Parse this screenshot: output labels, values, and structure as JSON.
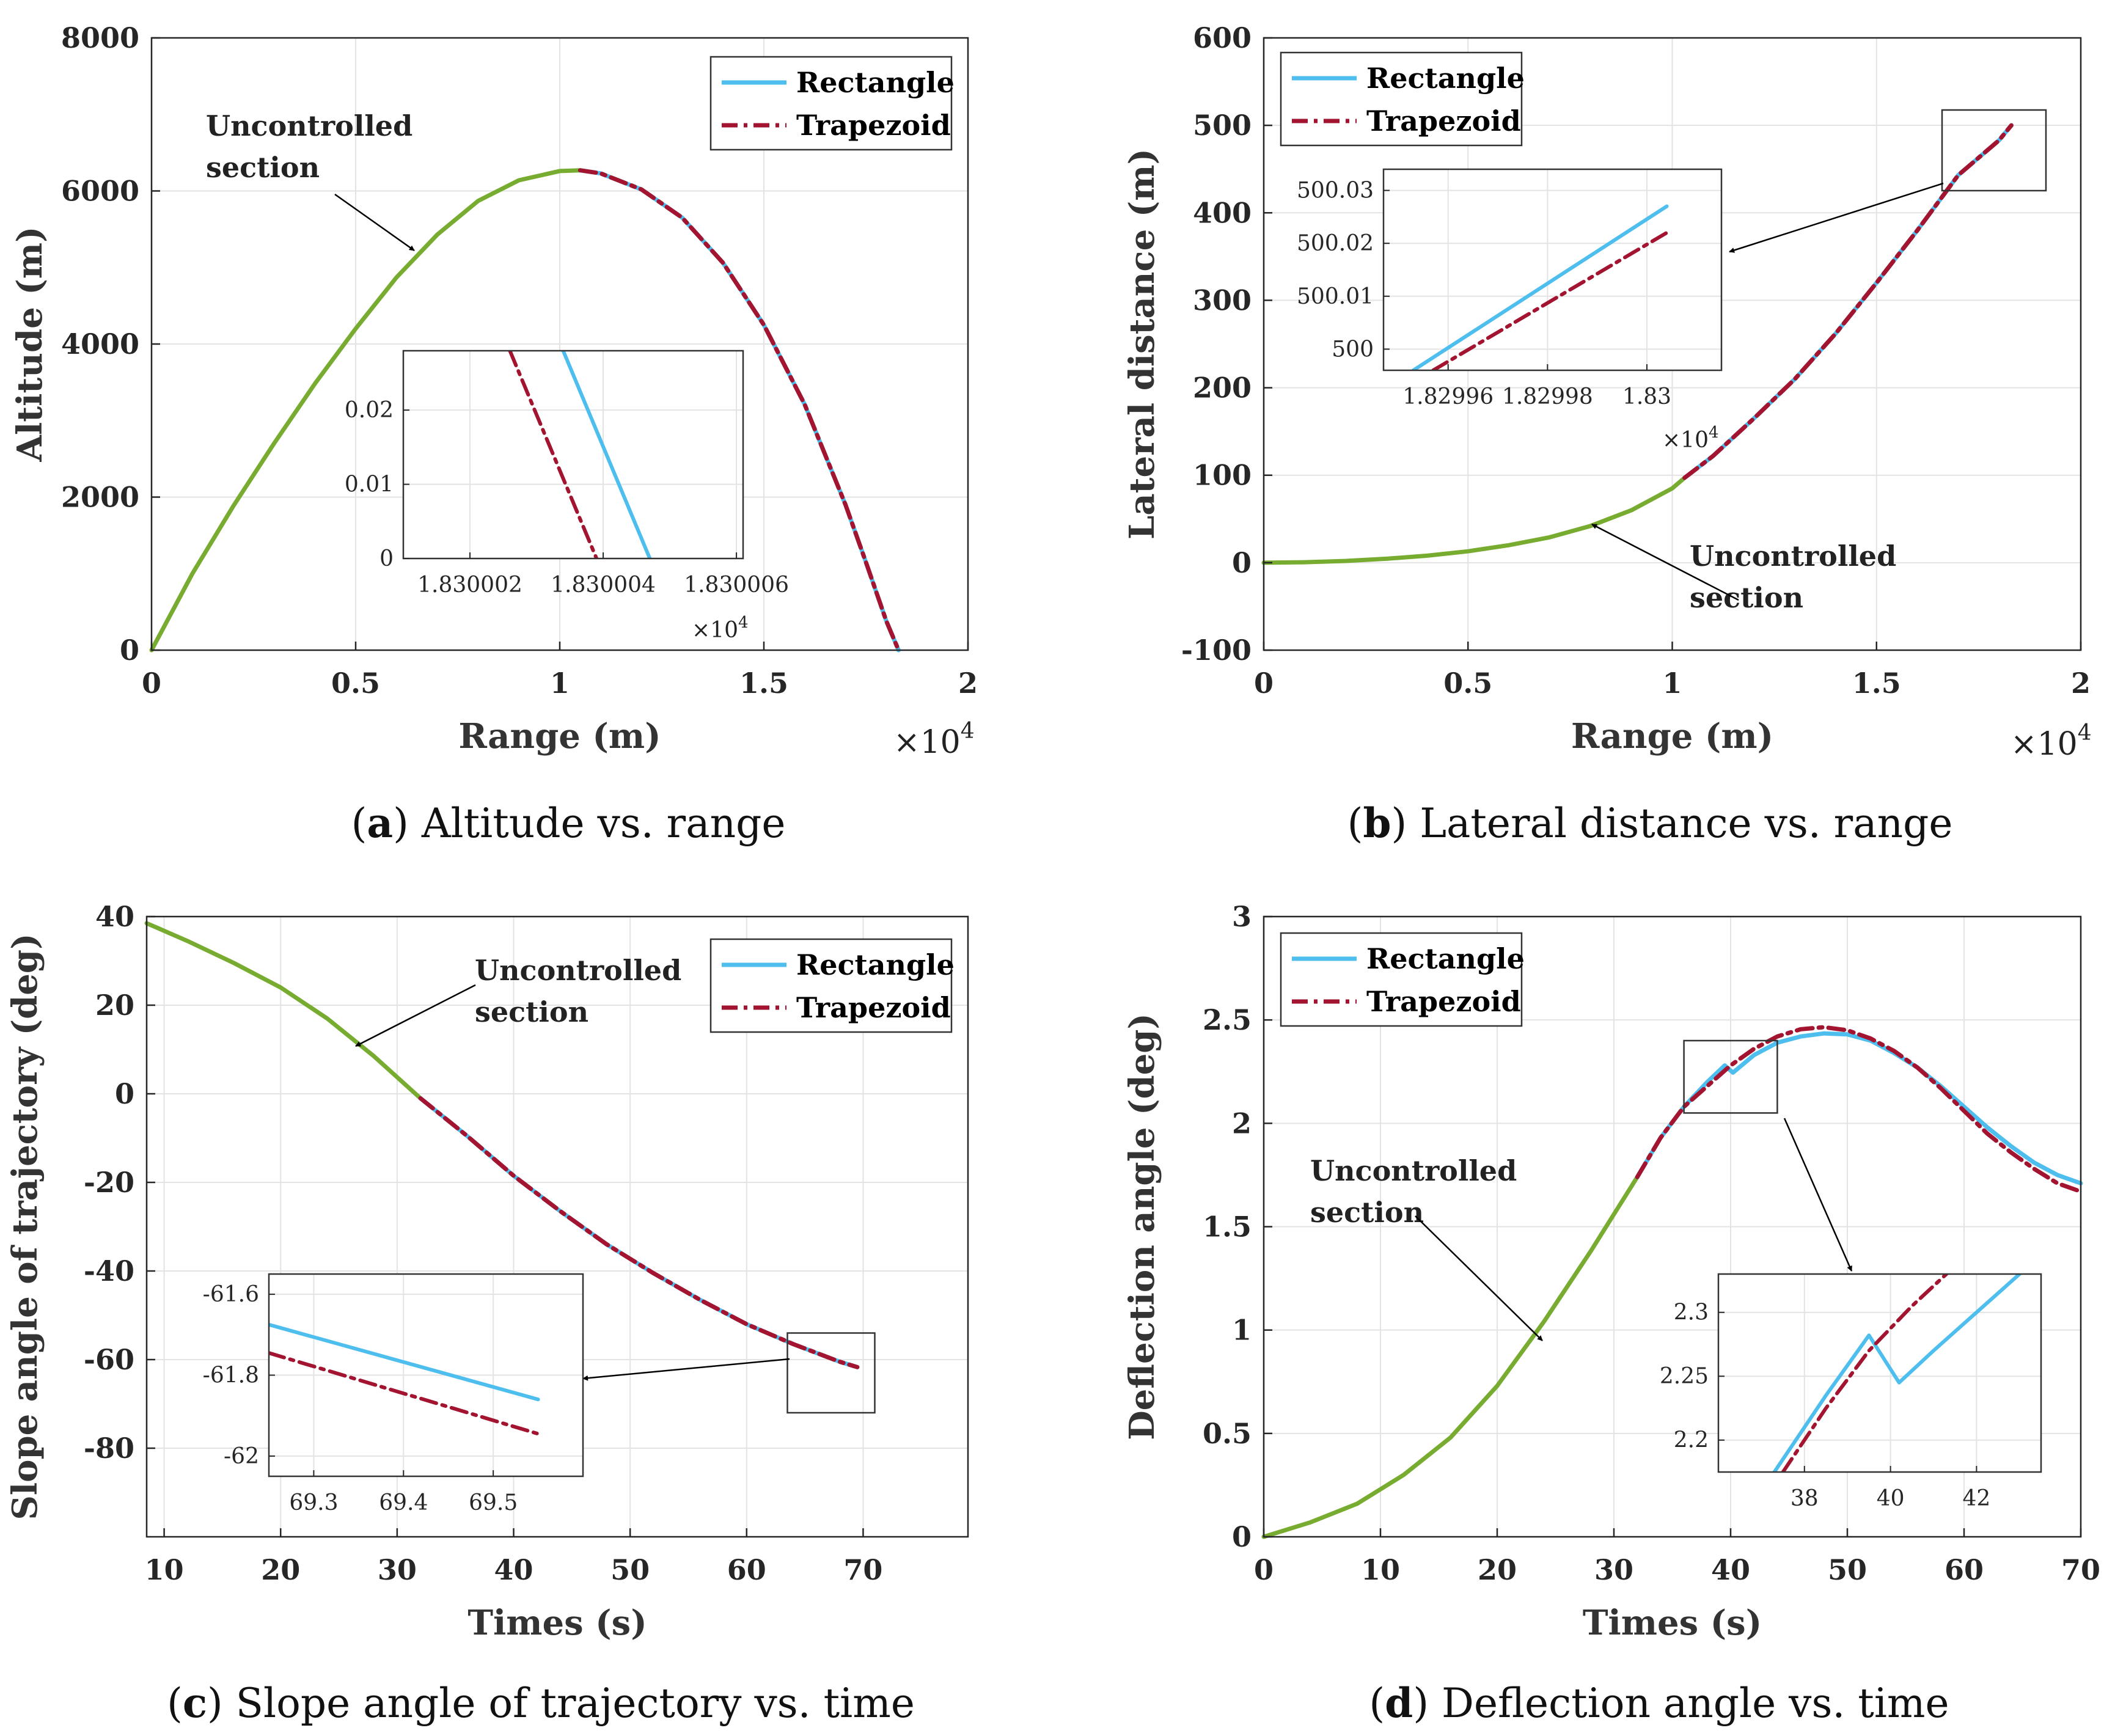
{
  "colors": {
    "uncontrolled": "#77AC30",
    "rectangle": "#4DBEEE",
    "trapezoid": "#A2142F",
    "grid": "#e3e3e3",
    "axis": "#262626"
  },
  "chart_data": [
    {
      "type": "line",
      "id": "a",
      "caption_letter": "a",
      "caption_text": " Altitude vs. range",
      "xlabel": "Range (m)",
      "ylabel": "Altitude (m)",
      "x_exponent": "×10",
      "x_exponent_power": "4",
      "xlim": [
        0,
        2
      ],
      "ylim": [
        0,
        8000
      ],
      "xticks": [
        0,
        0.5,
        1,
        1.5,
        2
      ],
      "xtick_labels": [
        "0",
        "0.5",
        "1",
        "1.5",
        "2"
      ],
      "yticks": [
        0,
        2000,
        4000,
        6000,
        8000
      ],
      "ytick_labels": [
        "0",
        "2000",
        "4000",
        "6000",
        "8000"
      ],
      "legend": {
        "position": "top-right",
        "entries": [
          "Rectangle",
          "Trapezoid"
        ]
      },
      "annotation": {
        "lines": [
          "Uncontrolled",
          "section"
        ]
      },
      "series": [
        {
          "name": "Uncontrolled section",
          "style": "uncontrolled",
          "x": [
            0,
            0.1,
            0.2,
            0.3,
            0.4,
            0.5,
            0.6,
            0.7,
            0.8,
            0.9,
            1.0,
            1.05
          ],
          "y": [
            0,
            1000,
            1880,
            2700,
            3480,
            4200,
            4870,
            5430,
            5870,
            6140,
            6260,
            6270
          ]
        },
        {
          "name": "Rectangle",
          "style": "rectangle",
          "x": [
            1.05,
            1.1,
            1.2,
            1.3,
            1.4,
            1.5,
            1.6,
            1.7,
            1.75,
            1.8,
            1.83
          ],
          "y": [
            6270,
            6230,
            6020,
            5650,
            5060,
            4250,
            3210,
            1900,
            1150,
            380,
            0
          ]
        },
        {
          "name": "Trapezoid",
          "style": "trapezoid",
          "x": [
            1.05,
            1.1,
            1.2,
            1.3,
            1.4,
            1.5,
            1.6,
            1.7,
            1.75,
            1.8,
            1.83
          ],
          "y": [
            6270,
            6230,
            6020,
            5650,
            5060,
            4250,
            3210,
            1900,
            1150,
            380,
            0
          ]
        }
      ],
      "inset": {
        "xlim": [
          1.830001,
          1.8300061
        ],
        "ylim": [
          0,
          0.028
        ],
        "xticks": [
          1.830002,
          1.830004,
          1.830006
        ],
        "xtick_labels": [
          "1.830002",
          "1.830004",
          "1.830006"
        ],
        "yticks": [
          0,
          0.01,
          0.02
        ],
        "ytick_labels": [
          "0",
          "0.01",
          "0.02"
        ],
        "x_exponent": "×10",
        "x_exponent_power": "4",
        "series": [
          {
            "name": "Rectangle",
            "style": "rectangle",
            "x": [
              1.8300034,
              1.8300047
            ],
            "y": [
              0.028,
              0
            ]
          },
          {
            "name": "Trapezoid",
            "style": "trapezoid",
            "x": [
              1.8300026,
              1.8300039
            ],
            "y": [
              0.028,
              0
            ]
          }
        ]
      }
    },
    {
      "type": "line",
      "id": "b",
      "caption_letter": "b",
      "caption_text": " Lateral distance vs. range",
      "xlabel": "Range (m)",
      "ylabel": "Lateral distance (m)",
      "x_exponent": "×10",
      "x_exponent_power": "4",
      "xlim": [
        0,
        2
      ],
      "ylim": [
        -100,
        600
      ],
      "xticks": [
        0,
        0.5,
        1,
        1.5,
        2
      ],
      "xtick_labels": [
        "0",
        "0.5",
        "1",
        "1.5",
        "2"
      ],
      "yticks": [
        -100,
        0,
        100,
        200,
        300,
        400,
        500,
        600
      ],
      "ytick_labels": [
        "-100",
        "0",
        "100",
        "200",
        "300",
        "400",
        "500",
        "600"
      ],
      "legend": {
        "position": "top-left",
        "entries": [
          "Rectangle",
          "Trapezoid"
        ]
      },
      "annotation": {
        "lines": [
          "Uncontrolled",
          "section"
        ]
      },
      "series": [
        {
          "name": "Uncontrolled section",
          "style": "uncontrolled",
          "x": [
            0,
            0.1,
            0.2,
            0.3,
            0.4,
            0.5,
            0.6,
            0.7,
            0.8,
            0.9,
            1.0,
            1.03
          ],
          "y": [
            0,
            0.5,
            2,
            4.5,
            8,
            13,
            20,
            29,
            42,
            60,
            85,
            97
          ]
        },
        {
          "name": "Rectangle",
          "style": "rectangle",
          "x": [
            1.03,
            1.1,
            1.2,
            1.3,
            1.4,
            1.5,
            1.6,
            1.7,
            1.8,
            1.83
          ],
          "y": [
            97,
            122,
            165,
            210,
            262,
            320,
            380,
            443,
            483,
            500
          ]
        },
        {
          "name": "Trapezoid",
          "style": "trapezoid",
          "x": [
            1.03,
            1.1,
            1.2,
            1.3,
            1.4,
            1.5,
            1.6,
            1.7,
            1.8,
            1.83
          ],
          "y": [
            97,
            122,
            165,
            210,
            262,
            320,
            380,
            443,
            483,
            500
          ]
        }
      ],
      "inset": {
        "xlim": [
          1.829947,
          1.830015
        ],
        "ylim": [
          499.996,
          500.034
        ],
        "xticks": [
          1.82996,
          1.82998,
          1.83
        ],
        "xtick_labels": [
          "1.82996",
          "1.82998",
          "1.83"
        ],
        "yticks": [
          500,
          500.01,
          500.02,
          500.03
        ],
        "ytick_labels": [
          "500",
          "500.01",
          "500.02",
          "500.03"
        ],
        "x_exponent": "×10",
        "x_exponent_power": "4",
        "series": [
          {
            "name": "Rectangle",
            "style": "rectangle",
            "x": [
              1.829953,
              1.830004
            ],
            "y": [
              499.996,
              500.027
            ]
          },
          {
            "name": "Trapezoid",
            "style": "trapezoid",
            "x": [
              1.829957,
              1.830004
            ],
            "y": [
              499.996,
              500.022
            ]
          }
        ]
      }
    },
    {
      "type": "line",
      "id": "c",
      "caption_letter": "c",
      "caption_text": " Slope angle of trajectory vs. time",
      "xlabel": "Times (s)",
      "ylabel": "Slope angle of trajectory (deg)",
      "xlim": [
        8.5,
        79
      ],
      "ylim": [
        -100,
        40
      ],
      "xticks": [
        10,
        20,
        30,
        40,
        50,
        60,
        70
      ],
      "xtick_labels": [
        "10",
        "20",
        "30",
        "40",
        "50",
        "60",
        "70"
      ],
      "yticks": [
        -80,
        -60,
        -40,
        -20,
        0,
        20,
        40
      ],
      "ytick_labels": [
        "-80",
        "-60",
        "-40",
        "-20",
        "0",
        "20",
        "40"
      ],
      "legend": {
        "position": "top-right",
        "entries": [
          "Rectangle",
          "Trapezoid"
        ]
      },
      "annotation": {
        "lines": [
          "Uncontrolled",
          "section"
        ]
      },
      "series": [
        {
          "name": "Uncontrolled section",
          "style": "uncontrolled",
          "x": [
            8.5,
            12,
            16,
            20,
            24,
            28,
            32
          ],
          "y": [
            38.5,
            34.5,
            29.5,
            24,
            17,
            8.5,
            -1
          ]
        },
        {
          "name": "Rectangle",
          "style": "rectangle",
          "x": [
            32,
            36,
            40,
            44,
            48,
            52,
            56,
            60,
            64,
            68,
            69.5
          ],
          "y": [
            -1,
            -9.5,
            -18.5,
            -26.5,
            -34,
            -40.5,
            -46.5,
            -52,
            -56.5,
            -60.5,
            -61.7
          ]
        },
        {
          "name": "Trapezoid",
          "style": "trapezoid",
          "x": [
            32,
            36,
            40,
            44,
            48,
            52,
            56,
            60,
            64,
            68,
            69.5
          ],
          "y": [
            -1,
            -9.5,
            -18.5,
            -26.5,
            -34,
            -40.5,
            -46.5,
            -52,
            -56.5,
            -60.5,
            -61.7
          ]
        }
      ],
      "zoom_box": {
        "x": [
          63.5,
          71
        ],
        "y": [
          -72,
          -54
        ]
      },
      "inset": {
        "xlim": [
          69.25,
          69.6
        ],
        "ylim": [
          -62.05,
          -61.55
        ],
        "xticks": [
          69.3,
          69.4,
          69.5
        ],
        "xtick_labels": [
          "69.3",
          "69.4",
          "69.5"
        ],
        "yticks": [
          -61.6,
          -61.8,
          -62
        ],
        "ytick_labels": [
          "-61.6",
          "-61.8",
          "-62"
        ],
        "series": [
          {
            "name": "Rectangle",
            "style": "rectangle",
            "x": [
              69.25,
              69.55
            ],
            "y": [
              -61.675,
              -61.86
            ]
          },
          {
            "name": "Trapezoid",
            "style": "trapezoid",
            "x": [
              69.25,
              69.55
            ],
            "y": [
              -61.745,
              -61.945
            ]
          }
        ]
      }
    },
    {
      "type": "line",
      "id": "d",
      "caption_letter": "d",
      "caption_text": " Deflection angle vs. time",
      "xlabel": "Times (s)",
      "ylabel": "Deflection angle (deg)",
      "xlim": [
        0,
        70
      ],
      "ylim": [
        0,
        3
      ],
      "xticks": [
        0,
        10,
        20,
        30,
        40,
        50,
        60,
        70
      ],
      "xtick_labels": [
        "0",
        "10",
        "20",
        "30",
        "40",
        "50",
        "60",
        "70"
      ],
      "yticks": [
        0,
        0.5,
        1,
        1.5,
        2,
        2.5,
        3
      ],
      "ytick_labels": [
        "0",
        "0.5",
        "1",
        "1.5",
        "2",
        "2.5",
        "3"
      ],
      "legend": {
        "position": "top-left",
        "entries": [
          "Rectangle",
          "Trapezoid"
        ]
      },
      "annotation": {
        "lines": [
          "Uncontrolled",
          "section"
        ]
      },
      "series": [
        {
          "name": "Uncontrolled section",
          "style": "uncontrolled",
          "x": [
            0,
            4,
            8,
            12,
            16,
            20,
            24,
            28,
            32
          ],
          "y": [
            0,
            0.07,
            0.16,
            0.3,
            0.48,
            0.73,
            1.04,
            1.38,
            1.74
          ]
        },
        {
          "name": "Rectangle",
          "style": "rectangle",
          "x": [
            32,
            34,
            36,
            38,
            39.5,
            40.2,
            42,
            44,
            46,
            48,
            50,
            52,
            54,
            56,
            58,
            60,
            62,
            64,
            66,
            68,
            70
          ],
          "y": [
            1.74,
            1.93,
            2.08,
            2.2,
            2.28,
            2.245,
            2.33,
            2.39,
            2.42,
            2.435,
            2.43,
            2.4,
            2.34,
            2.27,
            2.18,
            2.08,
            1.98,
            1.89,
            1.81,
            1.75,
            1.71
          ]
        },
        {
          "name": "Trapezoid",
          "style": "trapezoid",
          "x": [
            32,
            34,
            36,
            38,
            40,
            42,
            44,
            46,
            48,
            50,
            52,
            54,
            56,
            58,
            60,
            62,
            64,
            66,
            68,
            70
          ],
          "y": [
            1.74,
            1.93,
            2.08,
            2.18,
            2.28,
            2.36,
            2.42,
            2.455,
            2.465,
            2.45,
            2.41,
            2.35,
            2.27,
            2.17,
            2.06,
            1.95,
            1.86,
            1.78,
            1.71,
            1.67
          ]
        }
      ],
      "zoom_box": {
        "x": [
          36,
          44
        ],
        "y": [
          2.05,
          2.4
        ]
      },
      "inset": {
        "xlim": [
          36,
          43.5
        ],
        "ylim": [
          2.175,
          2.33
        ],
        "xticks": [
          38,
          40,
          42
        ],
        "xtick_labels": [
          "38",
          "40",
          "42"
        ],
        "yticks": [
          2.2,
          2.25,
          2.3
        ],
        "ytick_labels": [
          "2.2",
          "2.25",
          "2.3"
        ],
        "series": [
          {
            "name": "Rectangle",
            "style": "rectangle",
            "x": [
              37.3,
              38.5,
              39.5,
              40.2,
              41.0,
              42.0,
              43.0
            ],
            "y": [
              2.175,
              2.235,
              2.282,
              2.245,
              2.27,
              2.3,
              2.33
            ]
          },
          {
            "name": "Trapezoid",
            "style": "trapezoid",
            "x": [
              37.5,
              38.5,
              39.5,
              40.5,
              41.3
            ],
            "y": [
              2.175,
              2.225,
              2.27,
              2.305,
              2.33
            ]
          }
        ]
      }
    }
  ]
}
